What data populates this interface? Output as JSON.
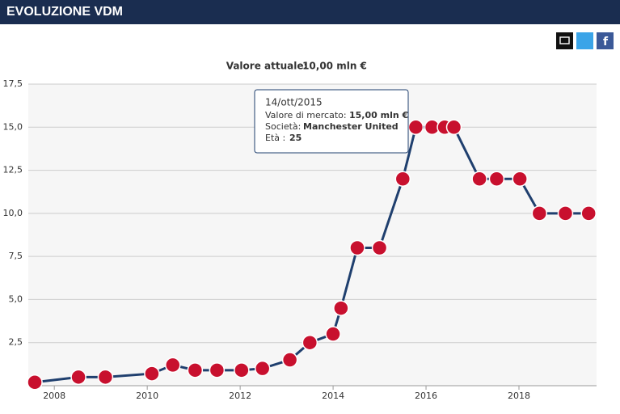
{
  "header": {
    "title": "EVOLUZIONE VDM"
  },
  "chart_data": {
    "type": "line",
    "subtitle_label": "Valore attuale:",
    "subtitle_value": "10,00 mln €",
    "x": [
      2007.58,
      2008.52,
      2009.1,
      2010.1,
      2010.55,
      2011.03,
      2011.5,
      2012.03,
      2012.48,
      2013.07,
      2013.5,
      2014.0,
      2014.17,
      2014.52,
      2015.0,
      2015.5,
      2015.78,
      2016.13,
      2016.4,
      2016.6,
      2017.15,
      2017.52,
      2018.02,
      2018.44,
      2019.0,
      2019.5
    ],
    "series": [
      {
        "color": "#1f3f6e",
        "values": [
          0.2,
          0.5,
          0.5,
          0.7,
          1.2,
          0.9,
          0.9,
          0.9,
          1.0,
          1.5,
          2.5,
          3.0,
          4.5,
          8.0,
          8.0,
          12.0,
          15.0,
          15.0,
          15.0,
          15.0,
          12.0,
          12.0,
          12.0,
          10.0,
          10.0,
          10.0
        ]
      }
    ],
    "marker_color": "#c8102e",
    "xlim": [
      2007.44,
      2019.67
    ],
    "xticks": [
      2008,
      2010,
      2012,
      2014,
      2016,
      2018
    ],
    "ylim": [
      0,
      17.5
    ],
    "yticks": [
      {
        "value": 2.5,
        "label": "2,5"
      },
      {
        "value": 5,
        "label": "5,0"
      },
      {
        "value": 7.5,
        "label": "7,5"
      },
      {
        "value": 10,
        "label": "10,0"
      },
      {
        "value": 12.5,
        "label": "12,5"
      },
      {
        "value": 15,
        "label": "15,0"
      },
      {
        "value": 17.5,
        "label": "17,5"
      }
    ],
    "grid": true,
    "tooltip": {
      "date": "14/ott/2015",
      "value_label": "Valore di mercato:",
      "value": "15,00 mln €",
      "club_label": "Società:",
      "club": "Manchester United",
      "age_label": "Età :",
      "age": "25"
    }
  }
}
